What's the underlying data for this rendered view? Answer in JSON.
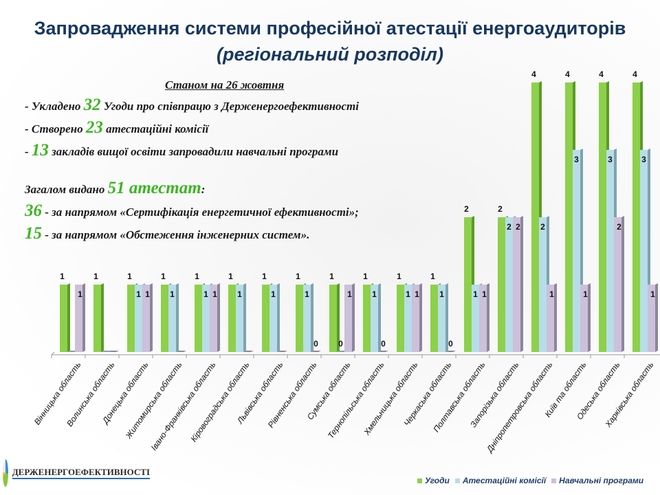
{
  "title": {
    "line1": "Запровадження системи професійної атестації енергоаудиторів",
    "line2": "(регіональний розподіл)"
  },
  "info": {
    "date": "Станом на 26 жовтня",
    "l1a": "- Укладено ",
    "l1n": "32",
    "l1b": " Угоди про співпрацю з Держенергоефективності",
    "l2a": "- Створено ",
    "l2n": "23",
    "l2b": " атестаційні комісії",
    "l3a": "- ",
    "l3n": "13",
    "l3b": " закладів вищої освіти запровадили навчальні програми",
    "l4a": "Загалом видано ",
    "l4n": "51 атестат",
    "l4b": ":",
    "l5n": "36",
    "l5b": " - за напрямом «Сертифікація енергетичної ефективності»;",
    "l6n": "15",
    "l6b": " - за напрямом «Обстеження  інженерних систем»."
  },
  "logo": {
    "text": "ДЕРЖЕНЕРГОЕФЕКТИВНОСТІ"
  },
  "chart_data": {
    "type": "bar",
    "categories": [
      "Вінницька область",
      "Волинська область",
      "Донецька область",
      "Житомирська область",
      "Івано-Франківська область",
      "Кіровоградська область",
      "Львівська область",
      "Рівненська область",
      "Сумська область",
      "Тернопільська область",
      "Хмельницька область",
      "Черкаська область",
      "Полтавська область",
      "Запорізька область",
      "Дніпропетровська область",
      "Київ та область",
      "Одеська область",
      "Харківська область"
    ],
    "series": [
      {
        "name": "Угоди",
        "color": "#8dd04a",
        "values": [
          1,
          1,
          1,
          1,
          1,
          1,
          1,
          1,
          1,
          1,
          1,
          1,
          2,
          2,
          4,
          4,
          4,
          4
        ]
      },
      {
        "name": "Атестаційні комісії",
        "color": "#b7dde8",
        "values": [
          0,
          0,
          1,
          1,
          1,
          1,
          1,
          1,
          0,
          1,
          1,
          1,
          1,
          2,
          2,
          3,
          3,
          3
        ]
      },
      {
        "name": "Навчальні програми",
        "color": "#ccc0da",
        "values": [
          1,
          0,
          1,
          0,
          1,
          0,
          0,
          0,
          1,
          0,
          1,
          0,
          1,
          2,
          1,
          1,
          2,
          1
        ]
      }
    ],
    "ylim": [
      0,
      4
    ],
    "legend": "bottom-right"
  }
}
